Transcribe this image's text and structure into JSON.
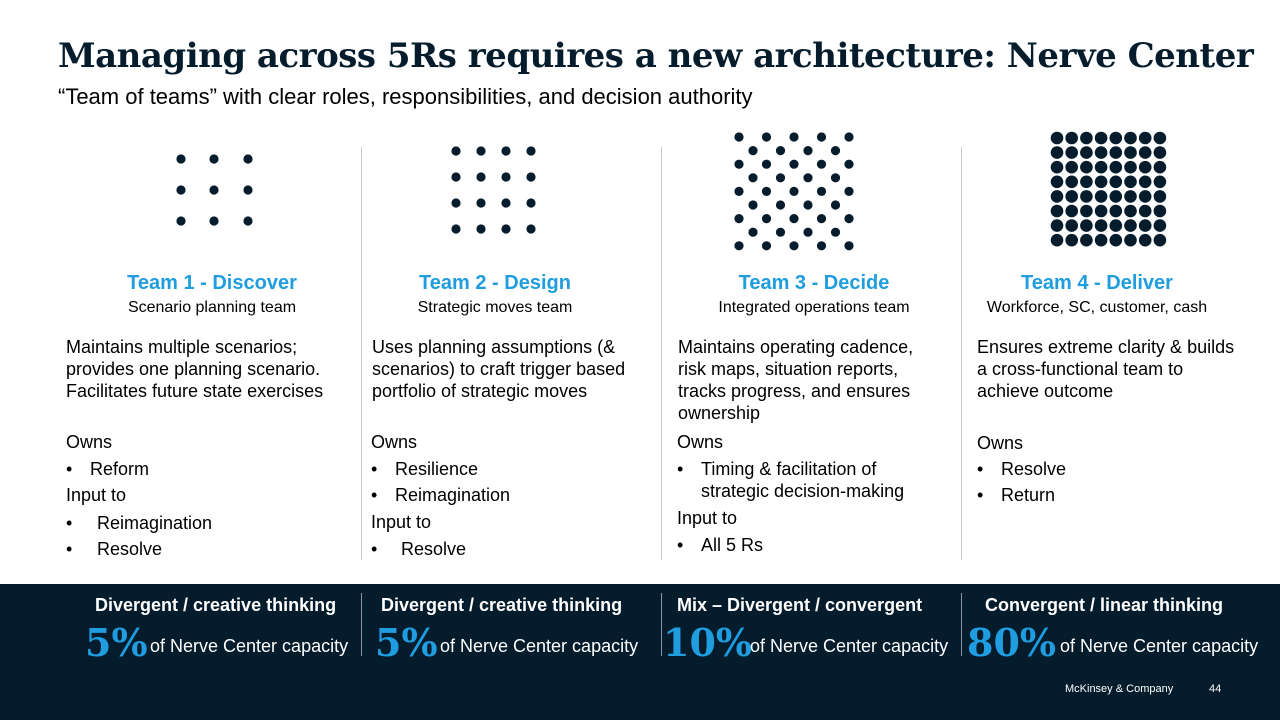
{
  "title": "Managing across 5Rs requires a new architecture: Nerve Center",
  "subtitle": "“Team of teams” with clear roles, responsibilities, and decision authority",
  "colors": {
    "navy": "#051c2c",
    "accent": "#1f9ddf"
  },
  "teams": [
    {
      "name": "Team 1 - Discover",
      "sub": "Scenario planning team",
      "desc": "Maintains multiple scenarios; provides one planning scenario. Facilitates future state exercises",
      "owns_label": "Owns",
      "owns": [
        "Reform"
      ],
      "input_label": "Input to",
      "inputs": [
        "Reimagination",
        "Resolve"
      ],
      "dot_grid": "3x3"
    },
    {
      "name": "Team 2 - Design",
      "sub": "Strategic moves team",
      "desc": "Uses planning assumptions (& scenarios) to craft trigger based portfolio of strategic moves",
      "owns_label": "Owns",
      "owns": [
        "Resilience",
        "Reimagination"
      ],
      "input_label": "Input to",
      "inputs": [
        "Resolve"
      ],
      "dot_grid": "4x4"
    },
    {
      "name": "Team 3 - Decide",
      "sub": "Integrated operations team",
      "desc": "Maintains operating cadence, risk maps, situation reports, tracks progress, and ensures ownership",
      "owns_label": "Owns",
      "owns": [
        "Timing & facilitation of strategic decision-making"
      ],
      "input_label": "Input to",
      "inputs": [
        "All 5 Rs"
      ],
      "dot_grid": "staggered"
    },
    {
      "name": "Team 4 - Deliver",
      "sub": "Workforce, SC, customer, cash",
      "desc": "Ensures extreme clarity & builds a cross-functional team to achieve outcome",
      "owns_label": "Owns",
      "owns": [
        "Resolve",
        "Return"
      ],
      "dot_grid": "8x8"
    }
  ],
  "footer": {
    "columns": [
      {
        "heading": "Divergent / creative thinking",
        "pct": "5%",
        "text": "of Nerve Center capacity"
      },
      {
        "heading": "Divergent / creative thinking",
        "pct": "5%",
        "text": "of Nerve Center capacity"
      },
      {
        "heading": "Mix – Divergent / convergent",
        "pct": "10%",
        "text": "of Nerve Center capacity"
      },
      {
        "heading": "Convergent / linear thinking",
        "pct": "80%",
        "text": "of Nerve Center capacity"
      }
    ],
    "brand": "McKinsey & Company",
    "page": "44"
  }
}
